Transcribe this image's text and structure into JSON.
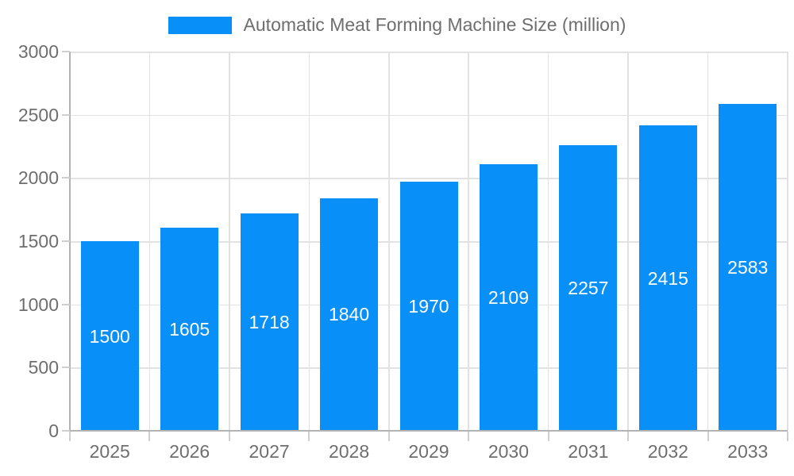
{
  "chart_data": {
    "type": "bar",
    "title": "Automatic Meat Forming Machine Size (million)",
    "categories": [
      "2025",
      "2026",
      "2027",
      "2028",
      "2029",
      "2030",
      "2031",
      "2032",
      "2033"
    ],
    "values": [
      1500,
      1605,
      1718,
      1840,
      1970,
      2109,
      2257,
      2415,
      2583
    ],
    "xlabel": "",
    "ylabel": "",
    "ylim": [
      0,
      3000
    ],
    "yticks": [
      0,
      500,
      1000,
      1500,
      2000,
      2500,
      3000
    ],
    "grid": true,
    "legend_position": "top",
    "bar_color": "#0890f8",
    "value_label_color": "#ffffff",
    "axis_text_color": "#6e6e6e",
    "gridline_color": "#e2e2e2",
    "axis_line_color": "#b3b3b3"
  }
}
